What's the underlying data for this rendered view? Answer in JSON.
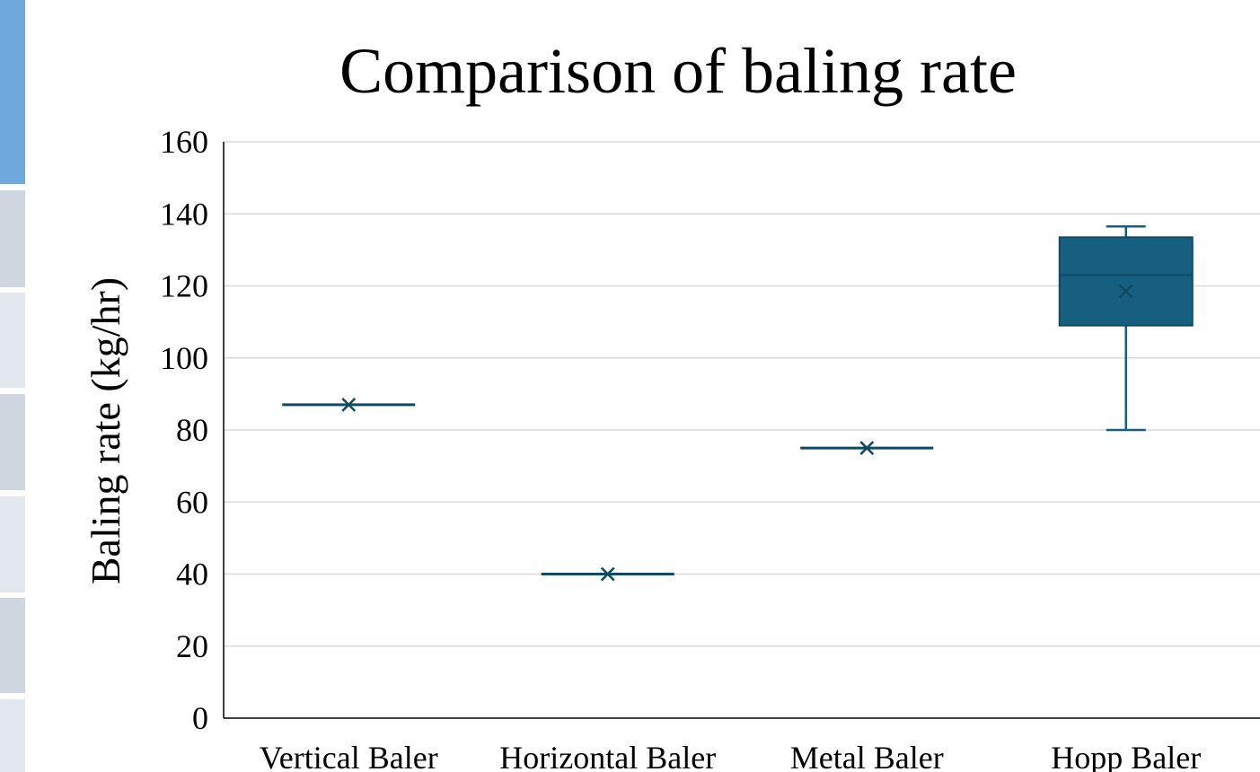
{
  "colors": {
    "box_fill": "#165f80",
    "box_stroke": "#0e4a63",
    "whisker": "#165f80",
    "grid": "#d9d9d9",
    "axis": "#000000",
    "strip_top": "#6fa8dc",
    "strip_mid": "#cfd6df",
    "strip_light": "#e4e8ee"
  },
  "chart_data": {
    "type": "box",
    "title": "Comparison of baling rate",
    "xlabel": "",
    "ylabel": "Baling rate (kg/hr)",
    "ylim": [
      0,
      160
    ],
    "yticks": [
      0,
      20,
      40,
      60,
      80,
      100,
      120,
      140,
      160
    ],
    "grid": true,
    "categories": [
      "Vertical Baler",
      "Horizontal Baler",
      "Metal Baler",
      "Hopp Baler"
    ],
    "boxes": [
      {
        "category": "Vertical Baler",
        "min": 87,
        "q1": 87,
        "median": 87,
        "q3": 87,
        "max": 87,
        "mean": 87
      },
      {
        "category": "Horizontal Baler",
        "min": 40,
        "q1": 40,
        "median": 40,
        "q3": 40,
        "max": 40,
        "mean": 40
      },
      {
        "category": "Metal Baler",
        "min": 75,
        "q1": 75,
        "median": 75,
        "q3": 75,
        "max": 75,
        "mean": 75
      },
      {
        "category": "Hopp Baler",
        "min": 80,
        "q1": 109,
        "median": 123,
        "q3": 133.5,
        "max": 136.5,
        "mean": 118.5
      }
    ]
  }
}
